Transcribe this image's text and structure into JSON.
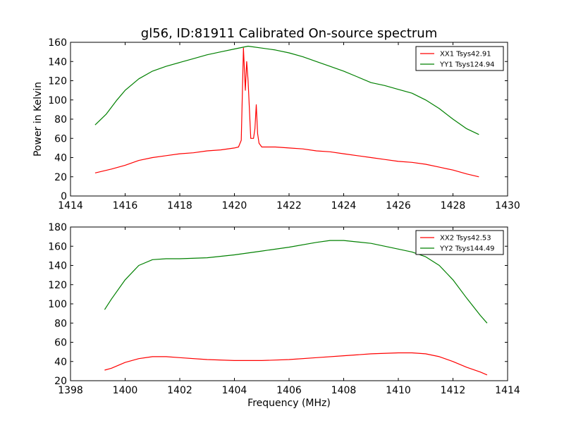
{
  "chart_data": [
    {
      "type": "line",
      "title": "gl56, ID:81911 Calibrated On-source spectrum",
      "xlabel": "",
      "ylabel": "Power in Kelvin",
      "xlim": [
        1414,
        1430
      ],
      "ylim": [
        0,
        160
      ],
      "xticks": [
        "1414",
        "1416",
        "1418",
        "1420",
        "1422",
        "1424",
        "1426",
        "1428",
        "1430"
      ],
      "yticks": [
        "0",
        "20",
        "40",
        "60",
        "80",
        "100",
        "120",
        "140",
        "160"
      ],
      "legend_position": "top-right",
      "grid": false,
      "series": [
        {
          "name": "XX1 Tsys42.91",
          "color": "#ff0000",
          "x": [
            1414.9,
            1415.5,
            1416,
            1416.5,
            1417,
            1417.5,
            1418,
            1418.5,
            1419,
            1419.5,
            1420,
            1420.15,
            1420.25,
            1420.33,
            1420.4,
            1420.45,
            1420.5,
            1420.6,
            1420.7,
            1420.75,
            1420.8,
            1420.85,
            1420.9,
            1421,
            1421.5,
            1422,
            1422.5,
            1423,
            1423.5,
            1424,
            1424.5,
            1425,
            1425.5,
            1426,
            1426.5,
            1427,
            1427.5,
            1428,
            1428.5,
            1428.95
          ],
          "y": [
            24,
            28,
            32,
            37,
            40,
            42,
            44,
            45,
            47,
            48,
            50,
            51,
            58,
            154,
            110,
            140,
            120,
            60,
            60,
            70,
            95,
            65,
            55,
            51,
            51,
            50,
            49,
            47,
            46,
            44,
            42,
            40,
            38,
            36,
            35,
            33,
            30,
            27,
            23,
            20
          ]
        },
        {
          "name": "YY1 Tsys124.94",
          "color": "#008000",
          "x": [
            1414.9,
            1415.3,
            1415.7,
            1416,
            1416.5,
            1417,
            1417.5,
            1418,
            1418.5,
            1419,
            1419.5,
            1420,
            1420.5,
            1421,
            1421.5,
            1422,
            1422.5,
            1423,
            1423.5,
            1424,
            1424.5,
            1425,
            1425.5,
            1426,
            1426.5,
            1427,
            1427.5,
            1428,
            1428.5,
            1428.95
          ],
          "y": [
            74,
            85,
            100,
            110,
            122,
            130,
            135,
            139,
            143,
            147,
            150,
            153,
            156,
            154,
            152,
            149,
            145,
            140,
            135,
            130,
            124,
            118,
            115,
            111,
            107,
            100,
            91,
            80,
            70,
            64
          ]
        }
      ]
    },
    {
      "type": "line",
      "title": "",
      "xlabel": "Frequency (MHz)",
      "ylabel": "",
      "xlim": [
        1398,
        1414
      ],
      "ylim": [
        20,
        180
      ],
      "xticks": [
        "1398",
        "1400",
        "1402",
        "1404",
        "1406",
        "1408",
        "1410",
        "1412",
        "1414"
      ],
      "yticks": [
        "20",
        "40",
        "60",
        "80",
        "100",
        "120",
        "140",
        "160",
        "180"
      ],
      "legend_position": "top-right",
      "grid": false,
      "series": [
        {
          "name": "XX2 Tsys42.53",
          "color": "#ff0000",
          "x": [
            1399.25,
            1399.5,
            1400,
            1400.5,
            1401,
            1401.5,
            1402,
            1403,
            1404,
            1405,
            1406,
            1407,
            1408,
            1409,
            1410,
            1410.5,
            1411,
            1411.5,
            1412,
            1412.5,
            1413,
            1413.25
          ],
          "y": [
            31,
            33,
            39,
            43,
            45,
            45,
            44,
            42,
            41,
            41,
            42,
            44,
            46,
            48,
            49,
            49,
            48,
            45,
            40,
            34,
            29,
            26
          ]
        },
        {
          "name": "YY2 Tsys144.49",
          "color": "#008000",
          "x": [
            1399.25,
            1399.5,
            1400,
            1400.5,
            1401,
            1401.5,
            1402,
            1403,
            1404,
            1405,
            1406,
            1407,
            1407.5,
            1408,
            1409,
            1410,
            1410.5,
            1411,
            1411.5,
            1412,
            1412.5,
            1413,
            1413.25
          ],
          "y": [
            94,
            105,
            125,
            140,
            146,
            147,
            147,
            148,
            151,
            155,
            159,
            164,
            166,
            166,
            163,
            157,
            154,
            149,
            140,
            125,
            106,
            88,
            80
          ]
        }
      ]
    }
  ]
}
